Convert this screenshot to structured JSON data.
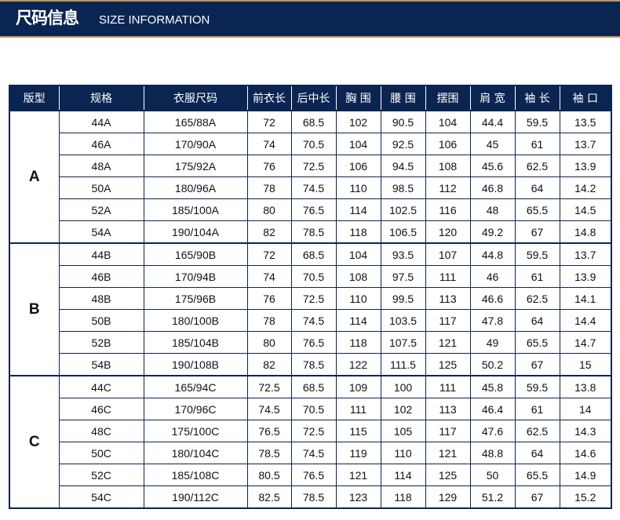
{
  "banner": {
    "title": "尺码信息",
    "subtitle": "SIZE INFORMATION"
  },
  "table": {
    "headers": [
      "版型",
      "规格",
      "衣服尺码",
      "前衣长",
      "后中长",
      "胸 围",
      "腰 围",
      "摆围",
      "肩 宽",
      "袖 长",
      "袖 口"
    ],
    "groups": [
      {
        "label": "A",
        "rows": [
          [
            "44A",
            "165/88A",
            "72",
            "68.5",
            "102",
            "90.5",
            "104",
            "44.4",
            "59.5",
            "13.5"
          ],
          [
            "46A",
            "170/90A",
            "74",
            "70.5",
            "104",
            "92.5",
            "106",
            "45",
            "61",
            "13.7"
          ],
          [
            "48A",
            "175/92A",
            "76",
            "72.5",
            "106",
            "94.5",
            "108",
            "45.6",
            "62.5",
            "13.9"
          ],
          [
            "50A",
            "180/96A",
            "78",
            "74.5",
            "110",
            "98.5",
            "112",
            "46.8",
            "64",
            "14.2"
          ],
          [
            "52A",
            "185/100A",
            "80",
            "76.5",
            "114",
            "102.5",
            "116",
            "48",
            "65.5",
            "14.5"
          ],
          [
            "54A",
            "190/104A",
            "82",
            "78.5",
            "118",
            "106.5",
            "120",
            "49.2",
            "67",
            "14.8"
          ]
        ]
      },
      {
        "label": "B",
        "rows": [
          [
            "44B",
            "165/90B",
            "72",
            "68.5",
            "104",
            "93.5",
            "107",
            "44.8",
            "59.5",
            "13.7"
          ],
          [
            "46B",
            "170/94B",
            "74",
            "70.5",
            "108",
            "97.5",
            "111",
            "46",
            "61",
            "13.9"
          ],
          [
            "48B",
            "175/96B",
            "76",
            "72.5",
            "110",
            "99.5",
            "113",
            "46.6",
            "62.5",
            "14.1"
          ],
          [
            "50B",
            "180/100B",
            "78",
            "74.5",
            "114",
            "103.5",
            "117",
            "47.8",
            "64",
            "14.4"
          ],
          [
            "52B",
            "185/104B",
            "80",
            "76.5",
            "118",
            "107.5",
            "121",
            "49",
            "65.5",
            "14.7"
          ],
          [
            "54B",
            "190/108B",
            "82",
            "78.5",
            "122",
            "111.5",
            "125",
            "50.2",
            "67",
            "15"
          ]
        ]
      },
      {
        "label": "C",
        "rows": [
          [
            "44C",
            "165/94C",
            "72.5",
            "68.5",
            "109",
            "100",
            "111",
            "45.8",
            "59.5",
            "13.8"
          ],
          [
            "46C",
            "170/96C",
            "74.5",
            "70.5",
            "111",
            "102",
            "113",
            "46.4",
            "61",
            "14"
          ],
          [
            "48C",
            "175/100C",
            "76.5",
            "72.5",
            "115",
            "105",
            "117",
            "47.6",
            "62.5",
            "14.3"
          ],
          [
            "50C",
            "180/104C",
            "78.5",
            "74.5",
            "119",
            "110",
            "121",
            "48.8",
            "64",
            "14.6"
          ],
          [
            "52C",
            "185/108C",
            "80.5",
            "76.5",
            "121",
            "114",
            "125",
            "50",
            "65.5",
            "14.9"
          ],
          [
            "54C",
            "190/112C",
            "82.5",
            "78.5",
            "123",
            "118",
            "129",
            "51.2",
            "67",
            "15.2"
          ]
        ]
      }
    ]
  },
  "colors": {
    "navy": "#0b2552",
    "gold": "#b8965a"
  }
}
